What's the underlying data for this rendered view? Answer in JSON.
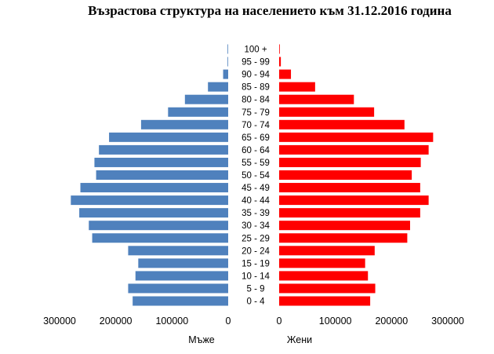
{
  "chart_data": {
    "type": "bar",
    "orientation": "horizontal",
    "subtype": "population-pyramid",
    "title": "Възрастова структура на населението към 31.12.2016 година",
    "categories": [
      "0 - 4",
      "5 - 9",
      "10 - 14",
      "15 - 19",
      "20 - 24",
      "25 - 29",
      "30 - 34",
      "35 - 39",
      "40 - 44",
      "45 - 49",
      "50 - 54",
      "55 - 59",
      "60 - 64",
      "65 - 69",
      "70 - 74",
      "75 - 79",
      "80 - 84",
      "85 - 89",
      "90 - 94",
      "95 - 99",
      "100 +"
    ],
    "series": [
      {
        "name": "Мъже",
        "color": "#4f81bd",
        "values": [
          170000,
          178000,
          165000,
          160000,
          178000,
          242000,
          248000,
          265000,
          280000,
          263000,
          235000,
          238000,
          230000,
          212000,
          155000,
          107000,
          77000,
          36000,
          9000,
          1000,
          200
        ]
      },
      {
        "name": "Жени",
        "color": "#ff0000",
        "values": [
          162000,
          171000,
          158000,
          153000,
          170000,
          228000,
          233000,
          251000,
          266000,
          251000,
          236000,
          252000,
          266000,
          274000,
          223000,
          169000,
          133000,
          64000,
          21000,
          3000,
          600
        ]
      }
    ],
    "x_left": {
      "label": "Мъже",
      "ticks": [
        "300000",
        "200000",
        "100000",
        "0"
      ],
      "range": [
        300000,
        0
      ]
    },
    "x_right": {
      "label": "Жени",
      "ticks": [
        "0",
        "100000",
        "200000",
        "300000"
      ],
      "range": [
        0,
        300000
      ]
    },
    "grid": false,
    "legend": "none"
  }
}
